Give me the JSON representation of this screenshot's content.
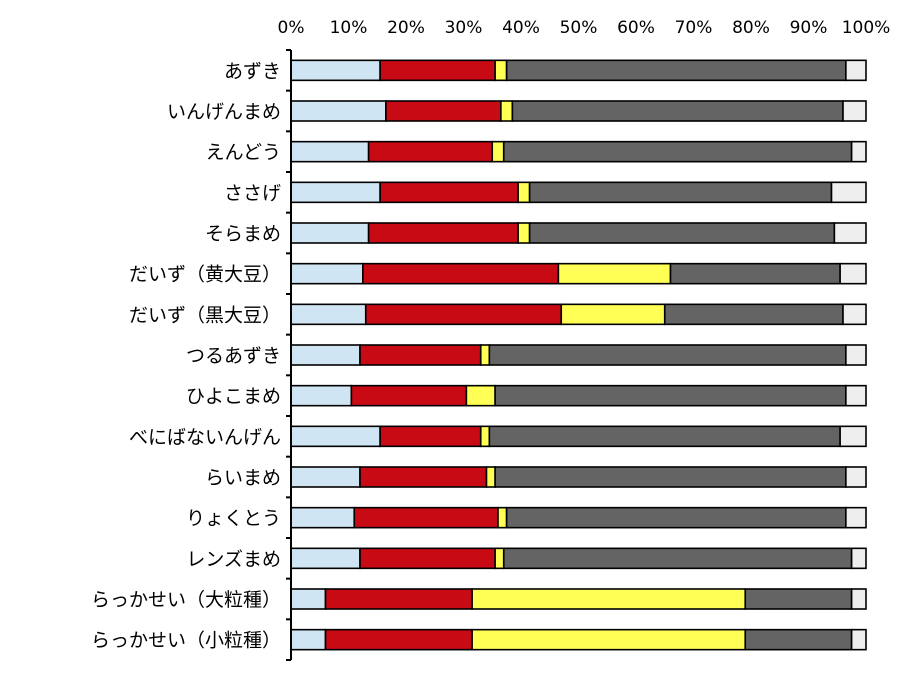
{
  "chart_data": {
    "type": "bar",
    "orientation": "horizontal",
    "stacked": "percent",
    "title": "",
    "xlabel": "",
    "ylabel": "",
    "xlim": [
      0,
      100
    ],
    "x_ticks": [
      "0%",
      "10%",
      "20%",
      "30%",
      "40%",
      "50%",
      "60%",
      "70%",
      "80%",
      "90%",
      "100%"
    ],
    "grid": false,
    "legend": "none",
    "categories": [
      "あずき",
      "いんげんまめ",
      "えんどう",
      "ささげ",
      "そらまめ",
      "だいず（黄大豆）",
      "だいず（黒大豆）",
      "つるあずき",
      "ひよこまめ",
      "べにばないんげん",
      "らいまめ",
      "りょくとう",
      "レンズまめ",
      "らっかせい（大粒種）",
      "らっかせい（小粒種）"
    ],
    "series": [
      {
        "color": "#cfe5f3",
        "values": [
          15.5,
          16.5,
          13.5,
          15.5,
          13.5,
          12.5,
          13.0,
          12.0,
          10.5,
          15.5,
          12.0,
          11.0,
          12.0,
          6.0,
          6.0
        ]
      },
      {
        "color": "#c80a14",
        "values": [
          20.0,
          20.0,
          21.5,
          24.0,
          26.0,
          34.0,
          34.0,
          21.0,
          20.0,
          17.5,
          22.0,
          25.0,
          23.5,
          25.5,
          25.5
        ]
      },
      {
        "color": "#ffff55",
        "values": [
          2.0,
          2.0,
          2.0,
          2.0,
          2.0,
          19.5,
          18.0,
          1.5,
          5.0,
          1.5,
          1.5,
          1.5,
          1.5,
          47.5,
          47.5
        ]
      },
      {
        "color": "#646464",
        "values": [
          59.0,
          57.5,
          60.5,
          52.5,
          53.0,
          29.5,
          31.0,
          62.0,
          61.0,
          61.0,
          61.0,
          59.0,
          60.5,
          18.5,
          18.5
        ]
      },
      {
        "color": "#eeeeee",
        "values": [
          3.5,
          4.0,
          2.5,
          6.0,
          5.5,
          4.5,
          4.0,
          3.5,
          3.5,
          4.5,
          3.5,
          3.5,
          2.5,
          2.5,
          2.5
        ]
      }
    ]
  }
}
